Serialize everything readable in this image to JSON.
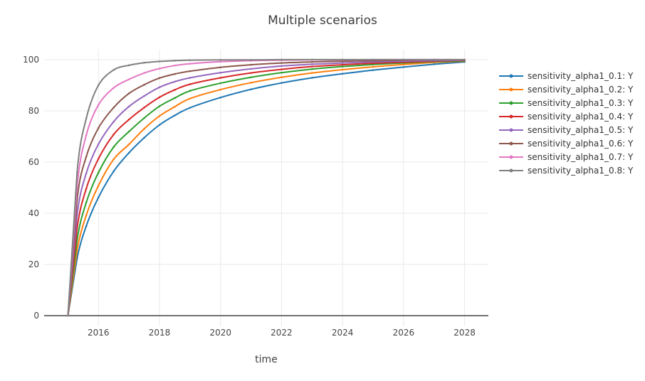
{
  "chart_data": {
    "type": "line",
    "title": "Multiple scenarios",
    "xlabel": "time",
    "ylabel": "",
    "x_ticks": [
      2016,
      2018,
      2020,
      2022,
      2024,
      2026,
      2028
    ],
    "y_ticks": [
      0,
      20,
      40,
      60,
      80,
      100
    ],
    "xlim": [
      2014.22,
      2028.78
    ],
    "ylim": [
      -4,
      104
    ],
    "grid": true,
    "legend_position": "right",
    "x": [
      2015,
      2015.3,
      2015.6,
      2016,
      2016.5,
      2017,
      2017.5,
      2018,
      2018.5,
      2019,
      2020,
      2021,
      2022,
      2023,
      2024,
      2025,
      2026,
      2027,
      2028
    ],
    "series": [
      {
        "name": "sensitivity_alpha1_0.1: Y",
        "color": "#1f77b4",
        "values": [
          0,
          22.4,
          35.0,
          46.2,
          56.4,
          63.6,
          69.5,
          74.5,
          78.2,
          81.2,
          85.2,
          88.4,
          90.9,
          92.9,
          94.5,
          95.9,
          97.1,
          98.2,
          99.1
        ]
      },
      {
        "name": "sensitivity_alpha1_0.2: Y",
        "color": "#ff7f0e",
        "values": [
          0,
          25.6,
          39.2,
          50.8,
          61.1,
          66.9,
          73.0,
          78.0,
          81.6,
          84.8,
          88.3,
          91.0,
          93.1,
          94.8,
          96.1,
          97.2,
          98.1,
          98.9,
          99.4
        ]
      },
      {
        "name": "sensitivity_alpha1_0.3: Y",
        "color": "#2ca02c",
        "values": [
          0,
          29.6,
          44.2,
          55.9,
          65.9,
          71.9,
          77.2,
          81.8,
          85.0,
          87.8,
          90.8,
          93.1,
          94.9,
          96.3,
          97.3,
          98.1,
          98.7,
          99.2,
          99.5
        ]
      },
      {
        "name": "sensitivity_alpha1_0.4: Y",
        "color": "#d62728",
        "values": [
          0,
          34.2,
          49.6,
          61.3,
          70.8,
          76.6,
          81.3,
          85.3,
          88.2,
          90.4,
          92.9,
          94.8,
          96.2,
          97.3,
          98.0,
          98.6,
          99.0,
          99.4,
          99.7
        ]
      },
      {
        "name": "sensitivity_alpha1_0.5: Y",
        "color": "#9467bd",
        "values": [
          0,
          39.4,
          55.6,
          67.0,
          75.8,
          81.7,
          85.8,
          89.2,
          91.4,
          92.9,
          94.9,
          96.4,
          97.5,
          98.2,
          98.7,
          99.1,
          99.4,
          99.6,
          99.8
        ]
      },
      {
        "name": "sensitivity_alpha1_0.6: Y",
        "color": "#8c564b",
        "values": [
          0,
          45.3,
          62.1,
          73.3,
          81.3,
          86.8,
          90.2,
          92.8,
          94.4,
          95.5,
          97.0,
          98.0,
          98.7,
          99.1,
          99.4,
          99.6,
          99.8,
          99.9,
          99.9
        ]
      },
      {
        "name": "sensitivity_alpha1_0.7: Y",
        "color": "#e377c2",
        "values": [
          0,
          50.5,
          70.5,
          82.3,
          89.0,
          92.3,
          94.8,
          96.5,
          97.7,
          98.4,
          99.2,
          99.6,
          99.8,
          99.9,
          99.9,
          100,
          100,
          100,
          100
        ]
      },
      {
        "name": "sensitivity_alpha1_0.8: Y",
        "color": "#7f7f7f",
        "values": [
          0,
          56.0,
          77.0,
          90.0,
          96.0,
          97.8,
          98.8,
          99.3,
          99.6,
          99.8,
          99.9,
          99.9,
          100,
          100,
          100,
          100,
          100,
          100,
          100
        ]
      }
    ]
  },
  "style_colors": {
    "grid": "#e9e9e9",
    "zeroline": "#444444",
    "tick_text": "#444444",
    "title_text": "#3d3d3d"
  }
}
